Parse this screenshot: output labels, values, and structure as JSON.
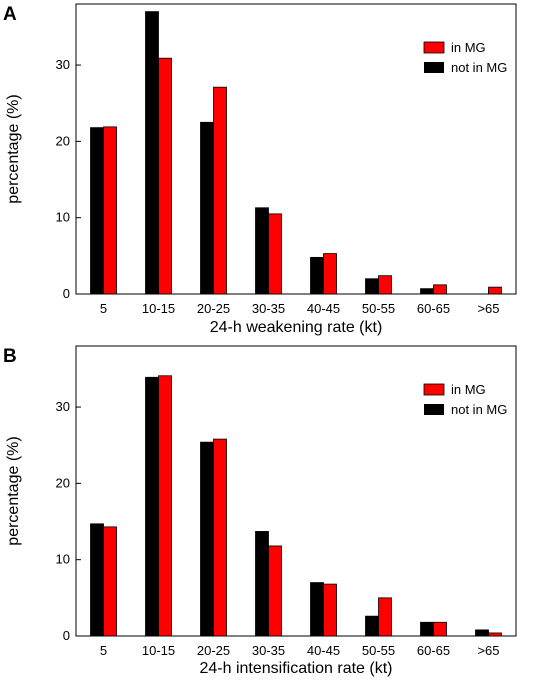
{
  "chart_data": [
    {
      "panel_label": "A",
      "type": "bar",
      "categories": [
        "5",
        "10-15",
        "20-25",
        "30-35",
        "40-45",
        "50-55",
        "60-65",
        ">65"
      ],
      "series": [
        {
          "name": "not in MG",
          "color": "#000000",
          "values": [
            21.8,
            37.0,
            22.5,
            11.3,
            4.8,
            2.0,
            0.7,
            0.0
          ]
        },
        {
          "name": "in MG",
          "color": "#ff0000",
          "values": [
            21.9,
            30.9,
            27.1,
            10.5,
            5.3,
            2.4,
            1.2,
            0.9
          ]
        }
      ],
      "xlabel": "24-h weakening rate (kt)",
      "ylabel": "percentage (%)",
      "ylim": [
        0,
        38
      ],
      "yticks": [
        "0",
        "10",
        "20",
        "30"
      ],
      "legend_placement": "top-right",
      "grid": false
    },
    {
      "panel_label": "B",
      "type": "bar",
      "categories": [
        "5",
        "10-15",
        "20-25",
        "30-35",
        "40-45",
        "50-55",
        "60-65",
        ">65"
      ],
      "series": [
        {
          "name": "not in MG",
          "color": "#000000",
          "values": [
            14.7,
            33.9,
            25.4,
            13.7,
            7.0,
            2.6,
            1.8,
            0.8
          ]
        },
        {
          "name": "in MG",
          "color": "#ff0000",
          "values": [
            14.3,
            34.1,
            25.8,
            11.8,
            6.8,
            5.0,
            1.8,
            0.4
          ]
        }
      ],
      "xlabel": "24-h intensification rate (kt)",
      "ylabel": "percentage (%)",
      "ylim": [
        0,
        38
      ],
      "yticks": [
        "0",
        "10",
        "20",
        "30"
      ],
      "legend_placement": "top-right",
      "grid": false
    }
  ]
}
